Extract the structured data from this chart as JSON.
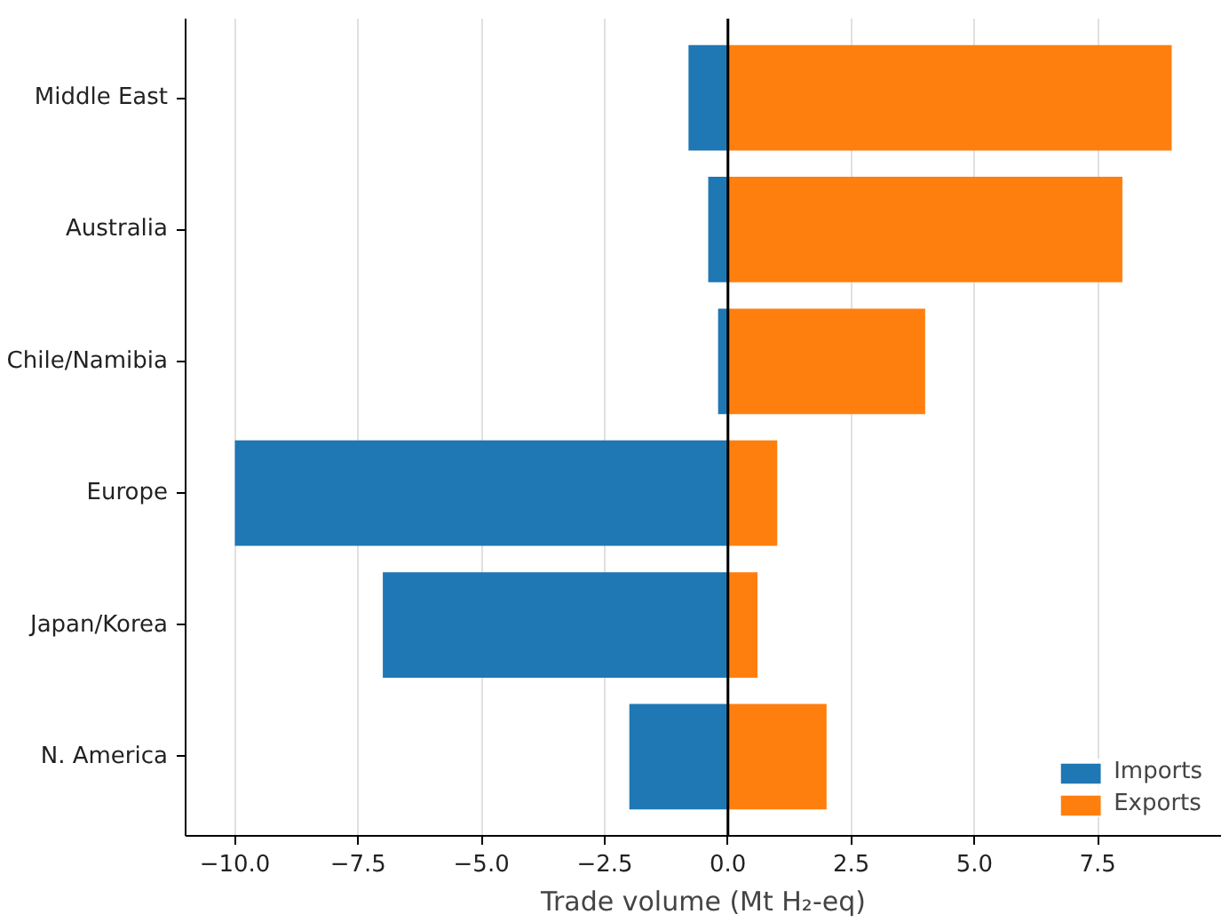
{
  "chart_data": {
    "type": "bar",
    "orientation": "horizontal",
    "stacked": true,
    "xlabel": "Trade volume (Mt H₂-eq)",
    "categories": [
      "Middle East",
      "Australia",
      "Chile/Namibia",
      "Europe",
      "Japan/Korea",
      "N. America"
    ],
    "series": [
      {
        "name": "Imports",
        "color": "#1f77b4",
        "values": [
          -0.8,
          -0.4,
          -0.2,
          -10.0,
          -7.0,
          -2.0
        ]
      },
      {
        "name": "Exports",
        "color": "#ff7f0e",
        "values": [
          9.0,
          8.0,
          4.0,
          1.0,
          0.6,
          2.0
        ]
      }
    ],
    "xlim": [
      -11,
      10
    ],
    "xticks": [
      {
        "value": -10,
        "label": "−10.0"
      },
      {
        "value": -7.5,
        "label": "−7.5"
      },
      {
        "value": -5,
        "label": "−5.0"
      },
      {
        "value": -2.5,
        "label": "−2.5"
      },
      {
        "value": 0,
        "label": "0.0"
      },
      {
        "value": 2.5,
        "label": "2.5"
      },
      {
        "value": 5,
        "label": "5.0"
      },
      {
        "value": 7.5,
        "label": "7.5"
      }
    ],
    "ref_lines": [
      {
        "axis": "x",
        "value": 0,
        "color": "#000000"
      }
    ],
    "grid": "x",
    "legend": "bottom right"
  }
}
